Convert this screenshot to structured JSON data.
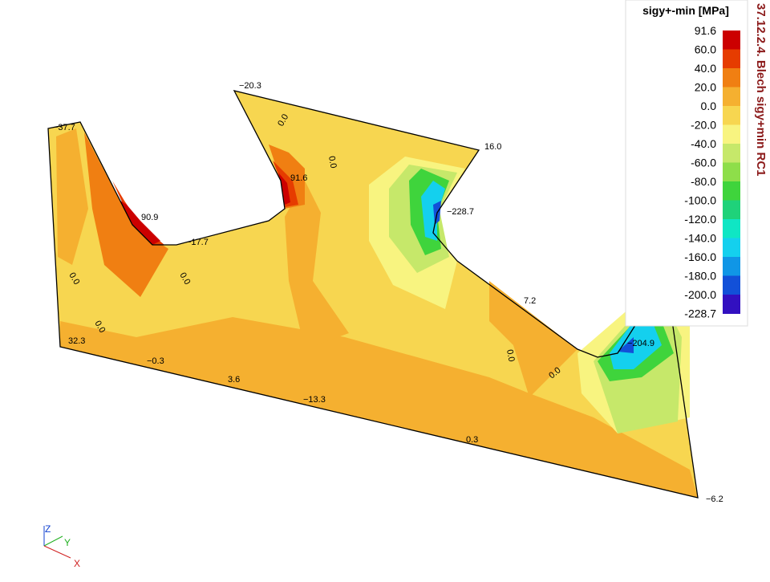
{
  "legend": {
    "title": "sigy+-min [MPa]",
    "labels": [
      "91.6",
      "60.0",
      "40.0",
      "20.0",
      "0.0",
      "-20.0",
      "-40.0",
      "-60.0",
      "-80.0",
      "-100.0",
      "-120.0",
      "-140.0",
      "-160.0",
      "-180.0",
      "-200.0",
      "-228.7"
    ],
    "colors": [
      "#cc0000",
      "#e63c00",
      "#f07f12",
      "#f5b030",
      "#f7d650",
      "#f8f480",
      "#c6e86a",
      "#8ede4a",
      "#3fd43c",
      "#1fd27a",
      "#0fe6c4",
      "#14d0ee",
      "#1096e6",
      "#1250d8",
      "#3210c0"
    ]
  },
  "side_title": "37.12.2.4. Blech sigy+min RC1",
  "plot_labels": [
    "−37.7",
    "90.9",
    "−17.7",
    "−20.3",
    "91.6",
    "16.0",
    "−228.7",
    "7.2",
    "−204.9",
    "32.3",
    "−0.3",
    "3.6",
    "−13.3",
    "0.3",
    "−6.2"
  ],
  "contour_label": "0.0",
  "axes": {
    "z": "Z",
    "y": "Y",
    "x": "X"
  }
}
